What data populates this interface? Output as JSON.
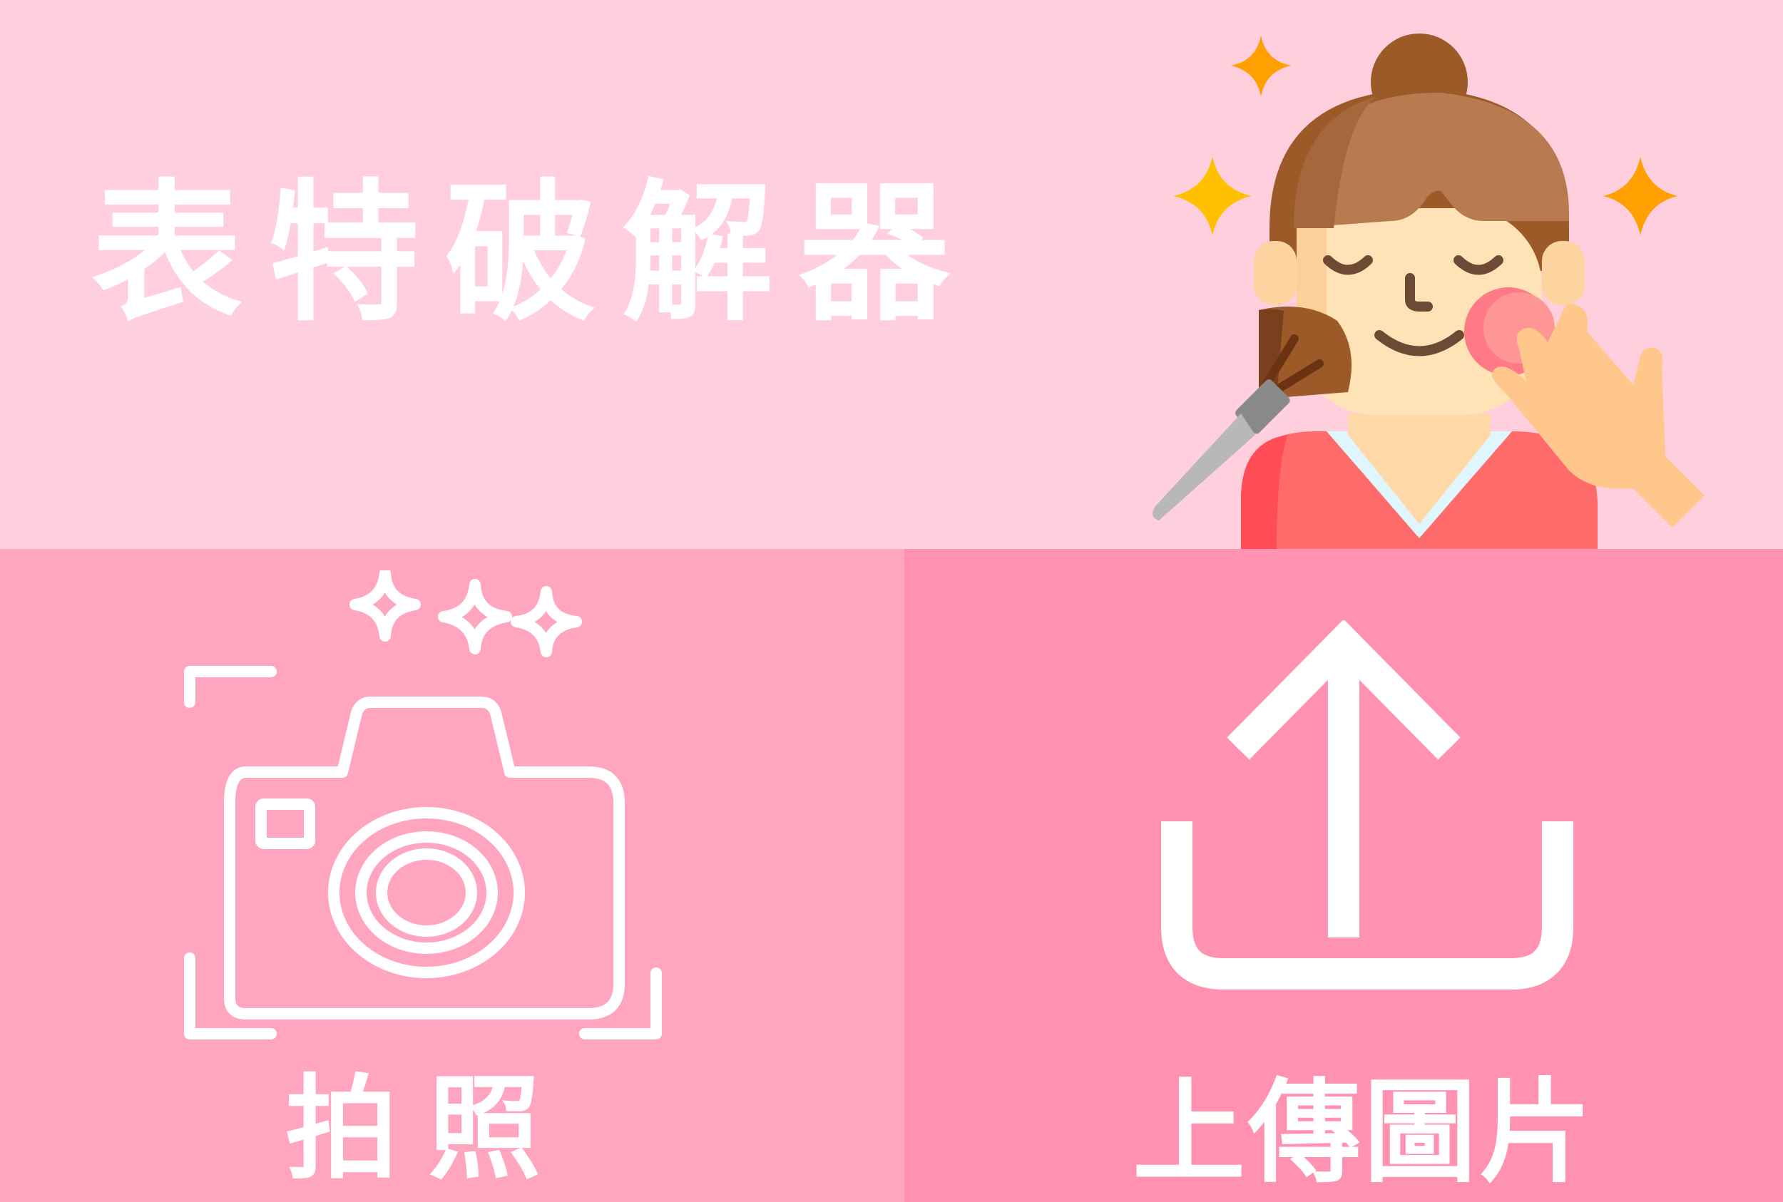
{
  "header": {
    "title": "表特破解器",
    "background_color": "#ffcfdd",
    "hero_icon": "woman-makeup-illustration"
  },
  "actions": {
    "camera": {
      "label": "拍照",
      "icon": "camera-sparkle-icon",
      "background_color": "#ffa5bf"
    },
    "upload": {
      "label": "上傳圖片",
      "icon": "upload-arrow-icon",
      "background_color": "#ff92b1"
    }
  }
}
